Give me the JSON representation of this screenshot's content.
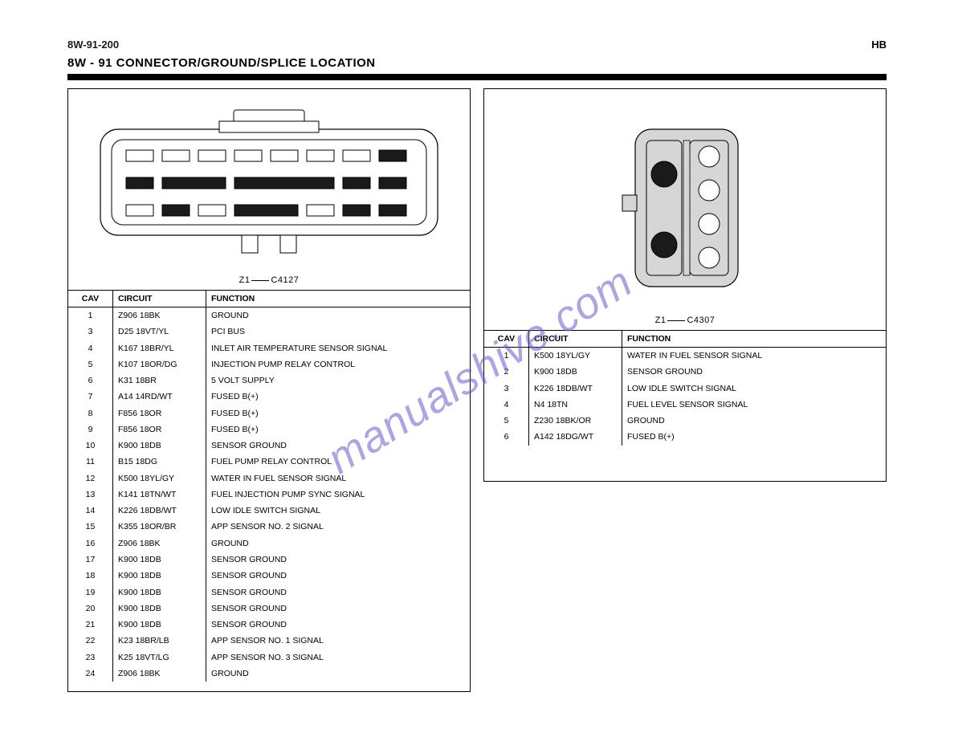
{
  "page_number": "8W-91-200",
  "section_title": "8W - 91  CONNECTOR/GROUND/SPLICE LOCATION",
  "header_right": "HB",
  "left": {
    "diagram_label_prefix": "Z1",
    "diagram_label_suffix": "C4127",
    "columns": {
      "a": "CAV",
      "b": "CIRCUIT",
      "c": "FUNCTION"
    },
    "rows": [
      {
        "cav": "1",
        "circuit": "Z906 18BK",
        "func": "GROUND"
      },
      {
        "cav": "3",
        "circuit": "D25 18VT/YL",
        "func": "PCI BUS"
      },
      {
        "cav": "4",
        "circuit": "K167 18BR/YL",
        "func": "INLET AIR TEMPERATURE SENSOR SIGNAL"
      },
      {
        "cav": "5",
        "circuit": "K107 18OR/DG",
        "func": "INJECTION PUMP RELAY CONTROL"
      },
      {
        "cav": "6",
        "circuit": "K31 18BR",
        "func": "5 VOLT SUPPLY"
      },
      {
        "cav": "7",
        "circuit": "A14 14RD/WT",
        "func": "FUSED B(+)"
      },
      {
        "cav": "8",
        "circuit": "F856 18OR",
        "func": "FUSED B(+)"
      },
      {
        "cav": "9",
        "circuit": "F856 18OR",
        "func": "FUSED B(+)"
      },
      {
        "cav": "10",
        "circuit": "K900 18DB",
        "func": "SENSOR GROUND"
      },
      {
        "cav": "11",
        "circuit": "B15 18DG",
        "func": "FUEL PUMP RELAY CONTROL"
      },
      {
        "cav": "12",
        "circuit": "K500 18YL/GY",
        "func": "WATER IN FUEL SENSOR SIGNAL"
      },
      {
        "cav": "13",
        "circuit": "K141 18TN/WT",
        "func": "FUEL INJECTION PUMP SYNC SIGNAL"
      },
      {
        "cav": "14",
        "circuit": "K226 18DB/WT",
        "func": "LOW IDLE SWITCH SIGNAL"
      },
      {
        "cav": "15",
        "circuit": "K355 18OR/BR",
        "func": "APP SENSOR NO. 2 SIGNAL"
      },
      {
        "cav": "16",
        "circuit": "Z906 18BK",
        "func": "GROUND"
      },
      {
        "cav": "17",
        "circuit": "K900 18DB",
        "func": "SENSOR GROUND"
      },
      {
        "cav": "18",
        "circuit": "K900 18DB",
        "func": "SENSOR GROUND"
      },
      {
        "cav": "19",
        "circuit": "K900 18DB",
        "func": "SENSOR GROUND"
      },
      {
        "cav": "20",
        "circuit": "K900 18DB",
        "func": "SENSOR GROUND"
      },
      {
        "cav": "21",
        "circuit": "K900 18DB",
        "func": "SENSOR GROUND"
      },
      {
        "cav": "22",
        "circuit": "K23 18BR/LB",
        "func": "APP SENSOR NO. 1 SIGNAL"
      },
      {
        "cav": "23",
        "circuit": "K25 18VT/LG",
        "func": "APP SENSOR NO. 3 SIGNAL"
      },
      {
        "cav": "24",
        "circuit": "Z906 18BK",
        "func": "GROUND"
      }
    ],
    "pins_row1_filled": [
      8
    ],
    "pins_row2_filled": [
      1,
      2,
      3,
      4,
      5,
      6,
      7,
      8
    ],
    "pins_row2_merged": [
      [
        2,
        3
      ],
      [
        4,
        5,
        6
      ]
    ],
    "pins_row3_filled": [
      2,
      4,
      5,
      7,
      8
    ],
    "pins_row3_merged": [
      [
        4,
        5
      ]
    ]
  },
  "right": {
    "diagram_label_prefix": "Z1",
    "diagram_label_suffix": "C4307",
    "columns": {
      "a": "CAV",
      "b": "CIRCUIT",
      "c": "FUNCTION"
    },
    "rows": [
      {
        "cav": "1",
        "circuit": "K500 18YL/GY",
        "func": "WATER IN FUEL SENSOR SIGNAL"
      },
      {
        "cav": "2",
        "circuit": "K900 18DB",
        "func": "SENSOR GROUND"
      },
      {
        "cav": "3",
        "circuit": "K226 18DB/WT",
        "func": "LOW IDLE SWITCH SIGNAL"
      },
      {
        "cav": "4",
        "circuit": "N4 18TN",
        "func": "FUEL LEVEL SENSOR SIGNAL"
      },
      {
        "cav": "5",
        "circuit": "Z230 18BK/OR",
        "func": "GROUND"
      },
      {
        "cav": "6",
        "circuit": "A142 18DG/WT",
        "func": "FUSED B(+)"
      }
    ],
    "left_col_filled": [
      1,
      3
    ],
    "right_col_count": 4,
    "colors": {
      "body": "#d6d6d6",
      "stroke": "#000000",
      "pin_open": "#ffffff",
      "pin_filled": "#1a1a1a"
    }
  },
  "watermark_text": "manualshive.com"
}
